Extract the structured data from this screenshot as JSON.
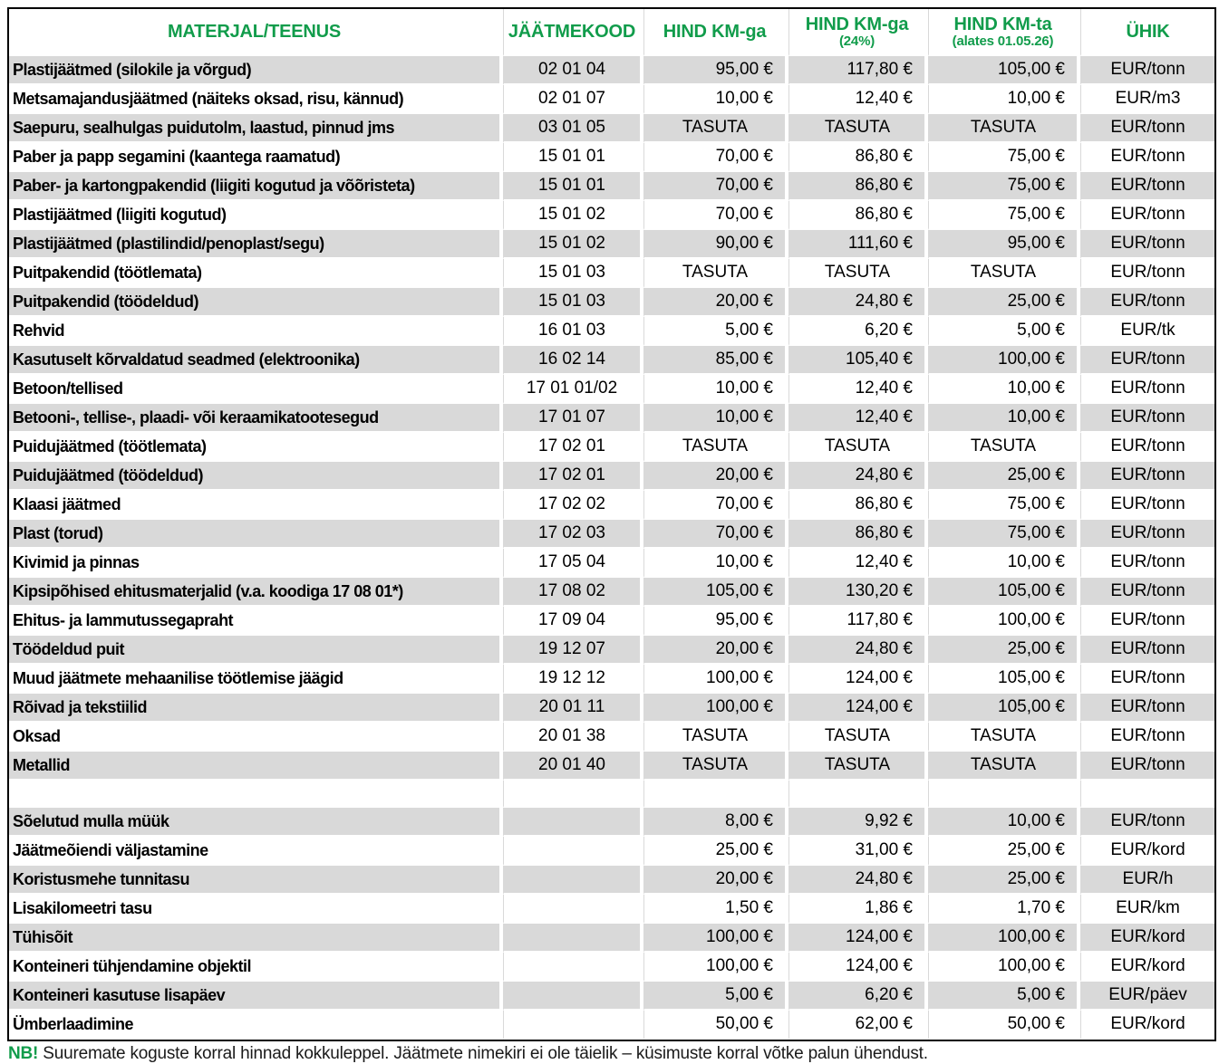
{
  "colors": {
    "header_green": "#119C4B",
    "stripe_gray": "#D9D9D9",
    "border_black": "#000000"
  },
  "table": {
    "columns": [
      {
        "key": "name",
        "label": "MATERJAL/TEENUS",
        "sub": ""
      },
      {
        "key": "code",
        "label": "JÄÄTMEKOOD",
        "sub": ""
      },
      {
        "key": "km_ga",
        "label": "HIND KM-ga",
        "sub": ""
      },
      {
        "key": "km_ga24",
        "label": "HIND KM-ga",
        "sub": "(24%)"
      },
      {
        "key": "km_ta",
        "label": "HIND KM-ta",
        "sub": "(alates 01.05.26)"
      },
      {
        "key": "unit",
        "label": "ÜHIK",
        "sub": ""
      }
    ],
    "rows": [
      {
        "name": "Plastijäätmed (silokile ja võrgud)",
        "code": "02 01 04",
        "km_ga": "95,00 €",
        "km_ga24": "117,80 €",
        "km_ta": "105,00 €",
        "unit": "EUR/tonn"
      },
      {
        "name": "Metsamajandusjäätmed (näiteks oksad, risu, kännud)",
        "code": "02 01 07",
        "km_ga": "10,00 €",
        "km_ga24": "12,40 €",
        "km_ta": "10,00 €",
        "unit": "EUR/m3"
      },
      {
        "name": "Saepuru, sealhulgas puidutolm, laastud, pinnud jms",
        "code": "03 01 05",
        "km_ga": "TASUTA",
        "km_ga24": "TASUTA",
        "km_ta": "TASUTA",
        "unit": "EUR/tonn"
      },
      {
        "name": "Paber ja papp segamini (kaantega raamatud)",
        "code": "15 01 01",
        "km_ga": "70,00 €",
        "km_ga24": "86,80 €",
        "km_ta": "75,00 €",
        "unit": "EUR/tonn"
      },
      {
        "name": "Paber- ja kartongpakendid (liigiti kogutud ja võõristeta)",
        "code": "15 01 01",
        "km_ga": "70,00 €",
        "km_ga24": "86,80 €",
        "km_ta": "75,00 €",
        "unit": "EUR/tonn"
      },
      {
        "name": "Plastijäätmed (liigiti kogutud)",
        "code": "15 01 02",
        "km_ga": "70,00 €",
        "km_ga24": "86,80 €",
        "km_ta": "75,00 €",
        "unit": "EUR/tonn"
      },
      {
        "name": "Plastijäätmed (plastilindid/penoplast/segu)",
        "code": "15 01 02",
        "km_ga": "90,00 €",
        "km_ga24": "111,60 €",
        "km_ta": "95,00 €",
        "unit": "EUR/tonn"
      },
      {
        "name": "Puitpakendid (töötlemata)",
        "code": "15 01 03",
        "km_ga": "TASUTA",
        "km_ga24": "TASUTA",
        "km_ta": "TASUTA",
        "unit": "EUR/tonn"
      },
      {
        "name": "Puitpakendid (töödeldud)",
        "code": "15 01 03",
        "km_ga": "20,00 €",
        "km_ga24": "24,80 €",
        "km_ta": "25,00 €",
        "unit": "EUR/tonn"
      },
      {
        "name": "Rehvid",
        "code": "16 01 03",
        "km_ga": "5,00 €",
        "km_ga24": "6,20 €",
        "km_ta": "5,00 €",
        "unit": "EUR/tk"
      },
      {
        "name": "Kasutuselt kõrvaldatud seadmed (elektroonika)",
        "code": "16 02 14",
        "km_ga": "85,00 €",
        "km_ga24": "105,40 €",
        "km_ta": "100,00 €",
        "unit": "EUR/tonn"
      },
      {
        "name": "Betoon/tellised",
        "code": "17 01 01/02",
        "km_ga": "10,00 €",
        "km_ga24": "12,40 €",
        "km_ta": "10,00 €",
        "unit": "EUR/tonn"
      },
      {
        "name": "Betooni-, tellise-, plaadi- või keraamikatootesegud",
        "code": "17 01 07",
        "km_ga": "10,00 €",
        "km_ga24": "12,40 €",
        "km_ta": "10,00 €",
        "unit": "EUR/tonn"
      },
      {
        "name": "Puidujäätmed (töötlemata)",
        "code": "17 02 01",
        "km_ga": "TASUTA",
        "km_ga24": "TASUTA",
        "km_ta": "TASUTA",
        "unit": "EUR/tonn"
      },
      {
        "name": "Puidujäätmed (töödeldud)",
        "code": "17 02 01",
        "km_ga": "20,00 €",
        "km_ga24": "24,80 €",
        "km_ta": "25,00 €",
        "unit": "EUR/tonn"
      },
      {
        "name": "Klaasi jäätmed",
        "code": "17 02 02",
        "km_ga": "70,00 €",
        "km_ga24": "86,80 €",
        "km_ta": "75,00 €",
        "unit": "EUR/tonn"
      },
      {
        "name": "Plast (torud)",
        "code": "17 02 03",
        "km_ga": "70,00 €",
        "km_ga24": "86,80 €",
        "km_ta": "75,00 €",
        "unit": "EUR/tonn"
      },
      {
        "name": "Kivimid ja pinnas",
        "code": "17 05 04",
        "km_ga": "10,00 €",
        "km_ga24": "12,40 €",
        "km_ta": "10,00 €",
        "unit": "EUR/tonn"
      },
      {
        "name": "Kipsipõhised ehitusmaterjalid (v.a. koodiga 17 08 01*)",
        "code": "17 08 02",
        "km_ga": "105,00 €",
        "km_ga24": "130,20 €",
        "km_ta": "105,00 €",
        "unit": "EUR/tonn"
      },
      {
        "name": "Ehitus- ja lammutussegapraht",
        "code": "17 09 04",
        "km_ga": "95,00 €",
        "km_ga24": "117,80 €",
        "km_ta": "100,00 €",
        "unit": "EUR/tonn"
      },
      {
        "name": "Töödeldud puit",
        "code": "19 12 07",
        "km_ga": "20,00 €",
        "km_ga24": "24,80 €",
        "km_ta": "25,00 €",
        "unit": "EUR/tonn"
      },
      {
        "name": "Muud jäätmete mehaanilise töötlemise jäägid",
        "code": "19 12 12",
        "km_ga": "100,00 €",
        "km_ga24": "124,00 €",
        "km_ta": "105,00 €",
        "unit": "EUR/tonn"
      },
      {
        "name": "Rõivad ja tekstiilid",
        "code": "20 01 11",
        "km_ga": "100,00 €",
        "km_ga24": "124,00 €",
        "km_ta": "105,00 €",
        "unit": "EUR/tonn"
      },
      {
        "name": "Oksad",
        "code": "20 01 38",
        "km_ga": "TASUTA",
        "km_ga24": "TASUTA",
        "km_ta": "TASUTA",
        "unit": "EUR/tonn"
      },
      {
        "name": "Metallid",
        "code": "20 01 40",
        "km_ga": "TASUTA",
        "km_ga24": "TASUTA",
        "km_ta": "TASUTA",
        "unit": "EUR/tonn"
      },
      {
        "name": "",
        "code": "",
        "km_ga": "",
        "km_ga24": "",
        "km_ta": "",
        "unit": ""
      },
      {
        "name": "Sõelutud mulla müük",
        "code": "",
        "km_ga": "8,00 €",
        "km_ga24": "9,92 €",
        "km_ta": "10,00 €",
        "unit": "EUR/tonn"
      },
      {
        "name": "Jäätmeõiendi väljastamine",
        "code": "",
        "km_ga": "25,00 €",
        "km_ga24": "31,00 €",
        "km_ta": "25,00 €",
        "unit": "EUR/kord"
      },
      {
        "name": "Koristusmehe tunnitasu",
        "code": "",
        "km_ga": "20,00 €",
        "km_ga24": "24,80 €",
        "km_ta": "25,00 €",
        "unit": "EUR/h"
      },
      {
        "name": "Lisakilomeetri tasu",
        "code": "",
        "km_ga": "1,50 €",
        "km_ga24": "1,86 €",
        "km_ta": "1,70 €",
        "unit": "EUR/km"
      },
      {
        "name": "Tühisõit",
        "code": "",
        "km_ga": "100,00 €",
        "km_ga24": "124,00 €",
        "km_ta": "100,00 €",
        "unit": "EUR/kord"
      },
      {
        "name": "Konteineri tühjendamine objektil",
        "code": "",
        "km_ga": "100,00 €",
        "km_ga24": "124,00 €",
        "km_ta": "100,00 €",
        "unit": "EUR/kord"
      },
      {
        "name": "Konteineri kasutuse lisapäev",
        "code": "",
        "km_ga": "5,00 €",
        "km_ga24": "6,20 €",
        "km_ta": "5,00 €",
        "unit": "EUR/päev"
      },
      {
        "name": "Ümberlaadimine",
        "code": "",
        "km_ga": "50,00 €",
        "km_ga24": "62,00 €",
        "km_ta": "50,00 €",
        "unit": "EUR/kord"
      }
    ]
  },
  "footer": {
    "nb_label": "NB!",
    "text": " Suuremate koguste korral hinnad kokkuleppel. Jäätmete nimekiri ei ole täielik – küsimuste korral võtke palun ühendust."
  }
}
